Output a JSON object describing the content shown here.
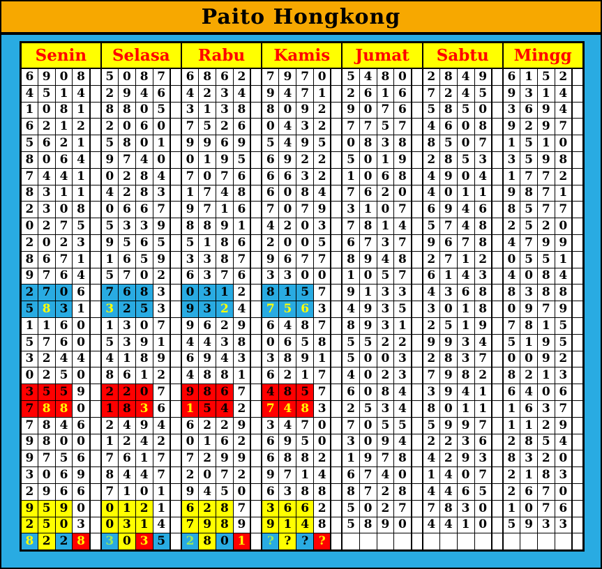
{
  "title": "Paito Hongkong",
  "days": [
    "Senin",
    "Selasa",
    "Rabu",
    "Kamis",
    "Jumat",
    "Sabtu",
    "Mingg"
  ],
  "colors": {
    "page_blue": "#29ABE2",
    "banner_orange": "#F7A800",
    "cell_blue": "#29ABE2",
    "cell_red": "#FF0000",
    "cell_yellow": "#FFFF00",
    "cell_white": "#FFFFFF",
    "header_text_red": "#FF0000",
    "digit_black": "#000000",
    "digit_yellow": "#FFFF00",
    "digit_green": "#9BEB5A"
  },
  "rows": [
    [
      "6908",
      "5087",
      "6862",
      "7970",
      "5480",
      "2849",
      "6152"
    ],
    [
      "4514",
      "2946",
      "4234",
      "9471",
      "2616",
      "7245",
      "9314"
    ],
    [
      "1081",
      "8805",
      "3138",
      "8092",
      "9076",
      "5850",
      "3694"
    ],
    [
      "6212",
      "2060",
      "7526",
      "0432",
      "7757",
      "4608",
      "9297"
    ],
    [
      "5621",
      "5801",
      "9969",
      "5495",
      "0838",
      "8507",
      "1510"
    ],
    [
      "8064",
      "9740",
      "0195",
      "6922",
      "5019",
      "2853",
      "3598"
    ],
    [
      "7441",
      "0284",
      "7076",
      "6632",
      "1068",
      "4904",
      "1772"
    ],
    [
      "8311",
      "4283",
      "1748",
      "6084",
      "7620",
      "4011",
      "9871"
    ],
    [
      "2308",
      "0667",
      "9716",
      "7079",
      "3107",
      "6946",
      "8577"
    ],
    [
      "0275",
      "5339",
      "8891",
      "4203",
      "7814",
      "5748",
      "2520"
    ],
    [
      "2023",
      "9565",
      "5186",
      "2005",
      "6737",
      "9678",
      "4799"
    ],
    [
      "8671",
      "1659",
      "3387",
      "9677",
      "8948",
      "2712",
      "0551"
    ],
    [
      "9764",
      "5702",
      "6376",
      "3300",
      "1057",
      "6143",
      "4084"
    ],
    [
      "2706",
      "7683",
      "0312",
      "8157",
      "9133",
      "4368",
      "8388"
    ],
    [
      "5831",
      "3253",
      "9324",
      "7563",
      "4935",
      "3018",
      "0979"
    ],
    [
      "1160",
      "1307",
      "9629",
      "6487",
      "8931",
      "2519",
      "7815"
    ],
    [
      "5760",
      "5391",
      "4438",
      "0658",
      "5522",
      "9934",
      "5195"
    ],
    [
      "3244",
      "4189",
      "6943",
      "3891",
      "5003",
      "2837",
      "0092"
    ],
    [
      "0250",
      "8612",
      "4881",
      "6217",
      "4023",
      "7982",
      "8213"
    ],
    [
      "3559",
      "2207",
      "9867",
      "4857",
      "6084",
      "3941",
      "6406"
    ],
    [
      "7880",
      "1836",
      "1542",
      "7483",
      "2534",
      "8011",
      "1637"
    ],
    [
      "7846",
      "2494",
      "6229",
      "3470",
      "7055",
      "5997",
      "1129"
    ],
    [
      "9800",
      "1242",
      "0162",
      "6950",
      "3094",
      "2236",
      "2854"
    ],
    [
      "9756",
      "7617",
      "7299",
      "6882",
      "1978",
      "4293",
      "8320"
    ],
    [
      "3069",
      "8447",
      "2072",
      "9714",
      "6740",
      "1407",
      "2183"
    ],
    [
      "2966",
      "7101",
      "9450",
      "6388",
      "8728",
      "4465",
      "2670"
    ],
    [
      "9590",
      "0121",
      "6287",
      "3662",
      "5027",
      "7830",
      "1076"
    ],
    [
      "2503",
      "0314",
      "7989",
      "9148",
      "5890",
      "4410",
      "5933"
    ],
    [
      "8228",
      "3035",
      "2801",
      "????",
      "",
      "",
      ""
    ]
  ],
  "highlights": {
    "marked_days": 4,
    "marked_digits": 3,
    "blue_rows": [
      14,
      15
    ],
    "red_rows": [
      20,
      21
    ],
    "yellow_rows": [
      27,
      28
    ],
    "yellow_fg_digits": {
      "15": [
        [
          1,
          2
        ],
        [
          2,
          1
        ],
        [
          3,
          3
        ],
        [
          4,
          1
        ],
        [
          4,
          2
        ],
        [
          4,
          3
        ]
      ],
      "21": [
        [
          1,
          2
        ],
        [
          1,
          3
        ],
        [
          2,
          3
        ],
        [
          3,
          1
        ],
        [
          4,
          1
        ],
        [
          4,
          2
        ],
        [
          4,
          3
        ]
      ]
    },
    "row29": {
      "1": [
        [
          "blue",
          "yellow"
        ],
        [
          "yellow",
          "black"
        ],
        [
          "blue",
          "black"
        ],
        [
          "red",
          "yellow"
        ]
      ],
      "2": [
        [
          "blue",
          "green"
        ],
        [
          "yellow",
          "black"
        ],
        [
          "red",
          "yellow"
        ],
        [
          "blue",
          "black"
        ]
      ],
      "3": [
        [
          "blue",
          "green"
        ],
        [
          "yellow",
          "black"
        ],
        [
          "blue",
          "black"
        ],
        [
          "red",
          "yellow"
        ]
      ],
      "4": [
        [
          "blue",
          "green"
        ],
        [
          "yellow",
          "black"
        ],
        [
          "blue",
          "black"
        ],
        [
          "red",
          "yellow"
        ]
      ]
    }
  }
}
